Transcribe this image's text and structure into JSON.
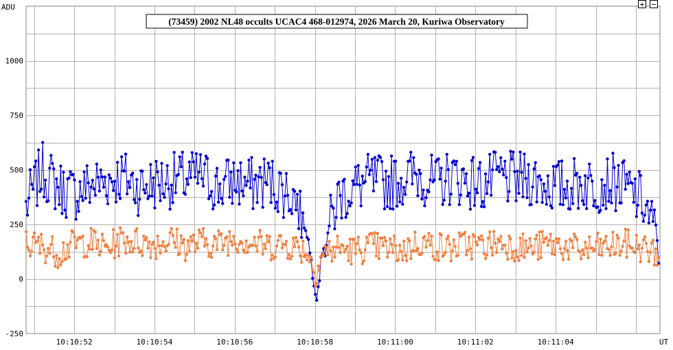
{
  "controls": {
    "zoom_in_label": "+",
    "zoom_out_label": "−"
  },
  "chart_data": {
    "type": "line",
    "title": "(73459) 2002 NL48 occults UCAC4 468-012974, 2026 March 20, Kuriwa Observatory",
    "ylabel": "ADU",
    "xlabel": "UT",
    "ylim": [
      -250,
      1250
    ],
    "xlim": [
      "10:10:50.8",
      "10:11:06.6"
    ],
    "y_ticks": [
      -250,
      0,
      250,
      500,
      750,
      1000
    ],
    "x_ticks": [
      "10:10:52",
      "10:10:54",
      "10:10:56",
      "10:10:58",
      "10:11:00",
      "10:11:02",
      "10:11:04"
    ],
    "grid": true,
    "colors": {
      "target": "#0000cc",
      "comparison": "#f08040",
      "grid": "#b0b0b0"
    },
    "series": [
      {
        "color": "#0000cc",
        "t": [
          50.8,
          51.2,
          51.6,
          52.0,
          52.4,
          52.8,
          53.2,
          53.6,
          54.0,
          54.4,
          54.8,
          55.2,
          55.6,
          56.0,
          56.4,
          56.8,
          57.2,
          57.5,
          57.8,
          57.95,
          58.05,
          58.2,
          58.6,
          59.0,
          59.4,
          59.8,
          60.2,
          60.6,
          61.0,
          61.4,
          61.8,
          62.2,
          62.6,
          63.0,
          63.4,
          63.8,
          64.2,
          64.6,
          65.0,
          65.4,
          65.8,
          66.2,
          66.6
        ],
        "values": [
          330,
          500,
          420,
          390,
          430,
          450,
          470,
          420,
          440,
          450,
          460,
          470,
          420,
          450,
          430,
          450,
          410,
          380,
          220,
          20,
          -80,
          150,
          380,
          420,
          450,
          440,
          460,
          480,
          430,
          470,
          450,
          430,
          470,
          450,
          460,
          430,
          420,
          440,
          430,
          450,
          410,
          350,
          150
        ]
      },
      {
        "color": "#f08040",
        "t": [
          50.8,
          51.2,
          51.6,
          52.0,
          52.4,
          52.8,
          53.2,
          53.6,
          54.0,
          54.4,
          54.8,
          55.2,
          55.6,
          56.0,
          56.4,
          56.8,
          57.2,
          57.5,
          57.8,
          58.0,
          58.2,
          58.6,
          59.0,
          59.4,
          59.8,
          60.2,
          60.6,
          61.0,
          61.4,
          61.8,
          62.2,
          62.6,
          63.0,
          63.4,
          63.8,
          64.2,
          64.6,
          65.0,
          65.4,
          65.8,
          66.2,
          66.6
        ],
        "values": [
          160,
          150,
          120,
          160,
          170,
          140,
          180,
          170,
          160,
          180,
          150,
          170,
          160,
          190,
          170,
          150,
          160,
          150,
          130,
          30,
          120,
          140,
          130,
          150,
          140,
          130,
          170,
          150,
          140,
          160,
          150,
          170,
          150,
          140,
          160,
          150,
          130,
          140,
          150,
          160,
          140,
          110
        ]
      }
    ]
  }
}
